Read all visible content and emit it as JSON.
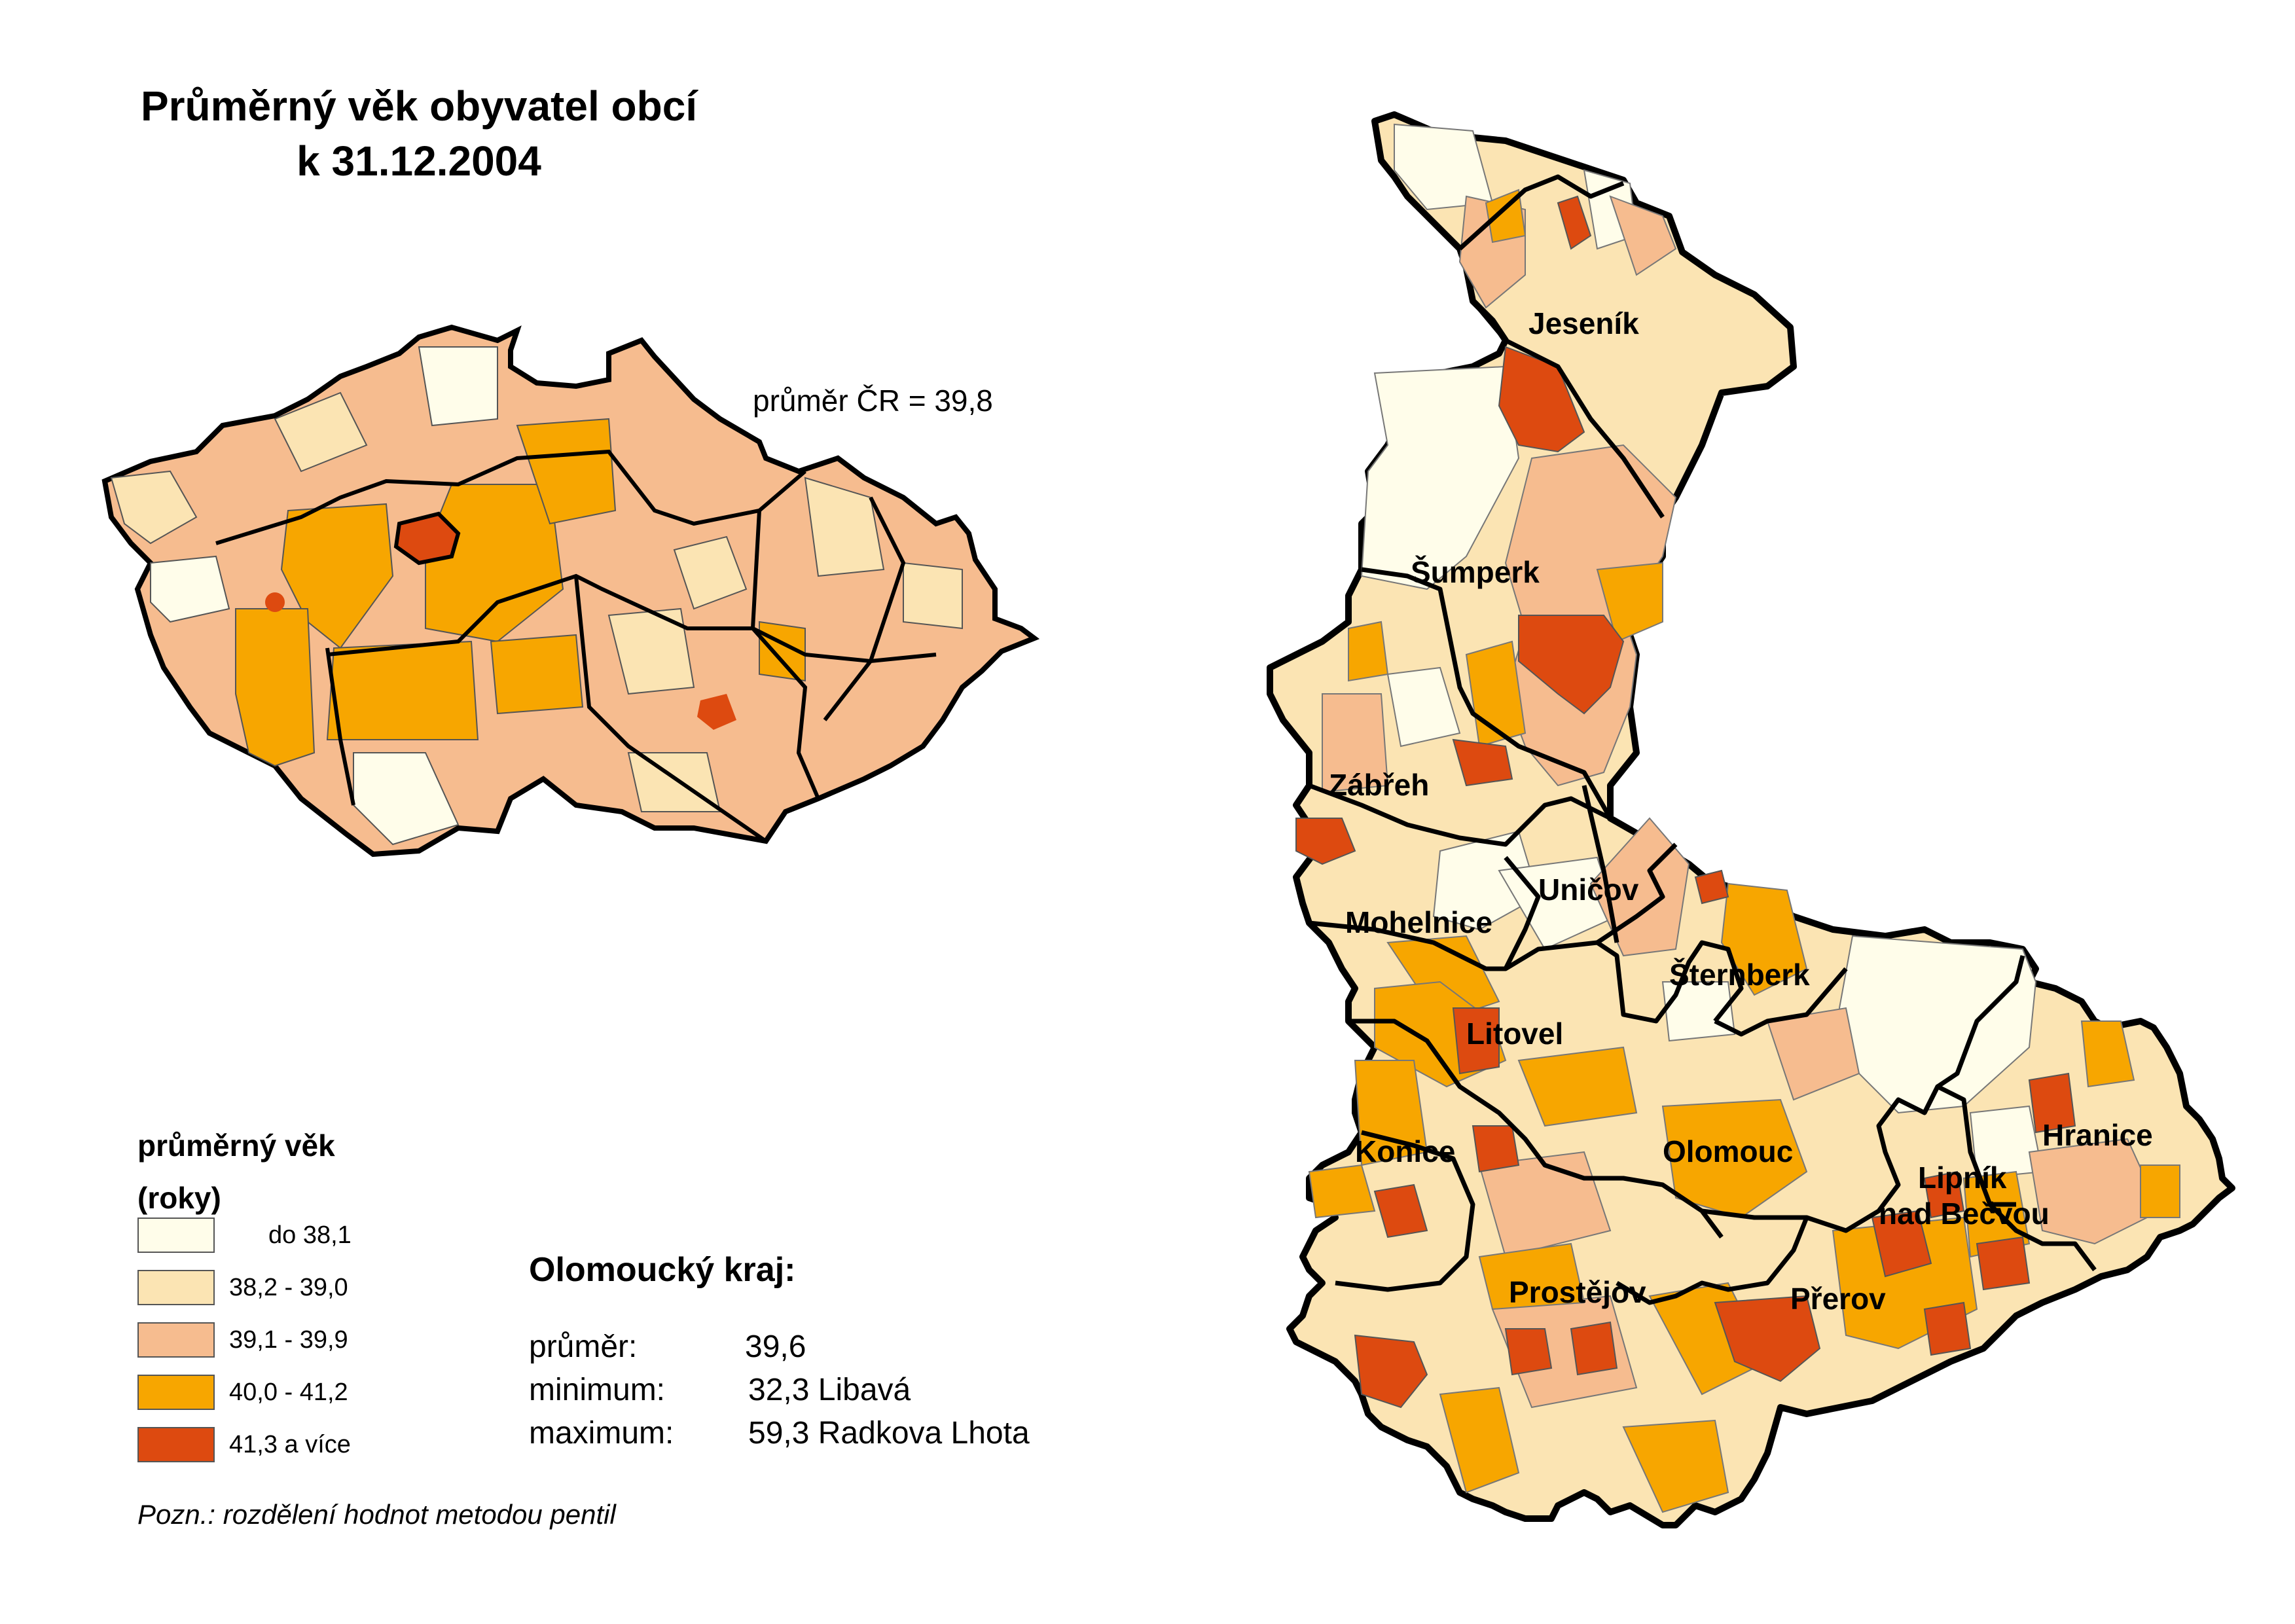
{
  "title_line1": "Průměrný věk obyvatel obcí",
  "title_line2": "k 31.12.2004",
  "cr_average": "průměr ČR = 39,8",
  "legend": {
    "title_line1": "průměrný věk",
    "title_line2": "(roky)",
    "classes": [
      {
        "label": "do 38,1",
        "color": "#fffdea"
      },
      {
        "label": "38,2 - 39,0",
        "color": "#fbe4b3"
      },
      {
        "label": "39,1 - 39,9",
        "color": "#f6bc8f"
      },
      {
        "label": "40,0 - 41,2",
        "color": "#f7a600"
      },
      {
        "label": "41,3 a více",
        "color": "#dd4a10"
      }
    ]
  },
  "region": {
    "heading": "Olomoucký kraj:",
    "average_label": "průměr:",
    "average_value": "39,6",
    "minimum_label": "minimum:",
    "minimum_value": "32,3 Libavá",
    "maximum_label": "maximum:",
    "maximum_value": "59,3 Radkova Lhota"
  },
  "note": "Pozn.: rozdělení hodnot metodou pentil",
  "towns": [
    "Jeseník",
    "Šumperk",
    "Zábřeh",
    "Uničov",
    "Mohelnice",
    "Šternberk",
    "Litovel",
    "Konice",
    "Olomouc",
    "Hranice",
    "Lipník",
    "nad Bečvou",
    "Prostějov",
    "Přerov"
  ]
}
